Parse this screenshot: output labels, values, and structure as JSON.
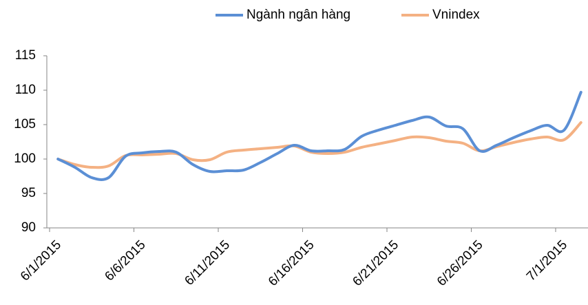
{
  "chart_data": {
    "type": "line",
    "categories": [
      "6/1/2015",
      null,
      null,
      null,
      null,
      "6/6/2015",
      null,
      null,
      null,
      null,
      "6/11/2015",
      null,
      null,
      null,
      null,
      "6/16/2015",
      null,
      null,
      null,
      null,
      "6/21/2015",
      null,
      null,
      null,
      null,
      "6/26/2015",
      null,
      null,
      null,
      null,
      "7/1/2015",
      null
    ],
    "series": [
      {
        "name": "Ngành ngân hàng",
        "color": "#5b8fd5",
        "values": [
          100,
          98.8,
          97.3,
          97.3,
          100.4,
          100.9,
          101.1,
          101.0,
          99.2,
          98.2,
          98.3,
          98.4,
          99.5,
          100.8,
          102.0,
          101.2,
          101.2,
          101.4,
          103.3,
          104.2,
          104.9,
          105.6,
          106.1,
          104.8,
          104.4,
          101.2,
          102.0,
          103.1,
          104.1,
          104.9,
          104.2,
          109.7
        ]
      },
      {
        "name": "Vnindex",
        "color": "#f4b183",
        "values": [
          100,
          99.2,
          98.8,
          99.0,
          100.5,
          100.6,
          100.7,
          100.8,
          99.9,
          99.9,
          101.0,
          101.3,
          101.5,
          101.7,
          101.9,
          101.0,
          100.8,
          101.0,
          101.7,
          102.2,
          102.7,
          103.2,
          103.1,
          102.6,
          102.3,
          101.2,
          101.8,
          102.4,
          102.9,
          103.2,
          102.8,
          105.3
        ]
      }
    ],
    "ylim": [
      90,
      115
    ],
    "yticks": [
      90,
      95,
      100,
      105,
      110,
      115
    ],
    "grid": false,
    "legend": "top",
    "smooth": true
  }
}
